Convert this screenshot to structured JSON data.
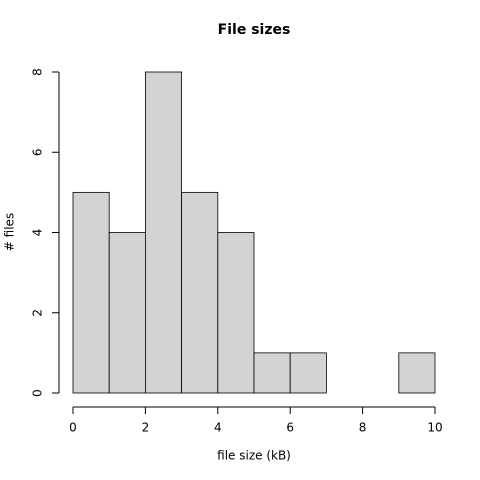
{
  "chart_data": {
    "type": "histogram",
    "title": "File sizes",
    "x_label": "file size (kB)",
    "y_label": "# files",
    "bins": [
      0,
      1,
      2,
      3,
      4,
      5,
      6,
      7,
      8,
      9,
      10
    ],
    "counts": [
      5,
      4,
      8,
      5,
      4,
      1,
      1,
      0,
      0,
      1
    ],
    "color": "#d3d3d3",
    "xlim": [
      0,
      10
    ],
    "xticks": [
      0,
      2,
      4,
      6,
      8,
      10
    ],
    "ylim": [
      0,
      8
    ],
    "yticks": [
      0,
      2,
      4,
      6,
      8
    ]
  }
}
